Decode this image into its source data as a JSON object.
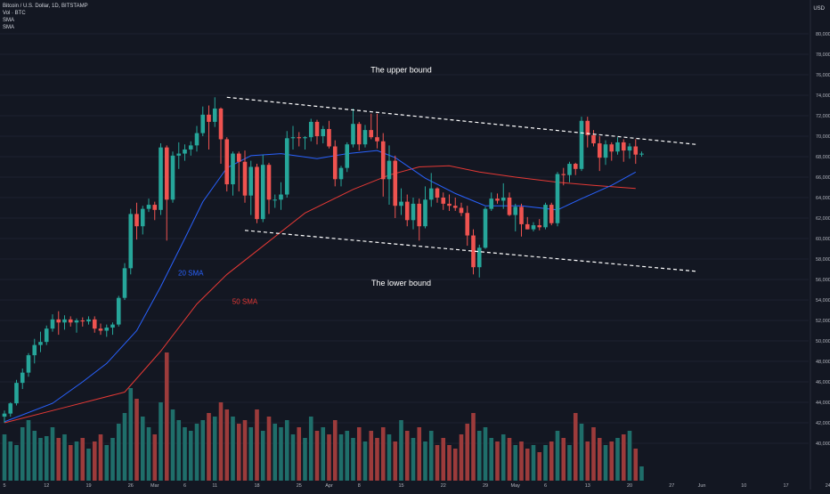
{
  "legend": {
    "symbol": "Bitcoin / U.S. Dollar, 1D, BITSTAMP",
    "volume": "Vol · BTC",
    "sma1": "SMA",
    "sma2": "SMA"
  },
  "currency": "USD",
  "colors": {
    "background": "#131722",
    "up": "#26a69a",
    "down": "#ef5350",
    "vol_up": "#1f6e6a",
    "vol_down": "#9c3b3b",
    "sma20": "#2962ff",
    "sma50": "#e53935",
    "axis_text": "#b2b5be",
    "bound": "#ffffff"
  },
  "chart_data": {
    "type": "candlestick",
    "ylim": [
      38000,
      82000
    ],
    "y_ticks": [
      "40,000",
      "42,000",
      "44,000",
      "46,000",
      "48,000",
      "50,000",
      "52,000",
      "54,000",
      "56,000",
      "58,000",
      "60,000",
      "62,000",
      "64,000",
      "66,000",
      "68,000",
      "70,000",
      "72,000",
      "74,000",
      "76,000",
      "78,000",
      "80,000"
    ],
    "x_ticks": [
      "5",
      "12",
      "19",
      "26",
      "Mar",
      "6",
      "11",
      "18",
      "25",
      "Apr",
      "8",
      "15",
      "22",
      "29",
      "May",
      "6",
      "13",
      "20",
      "27",
      "Jun",
      "10",
      "17",
      "24"
    ],
    "candles": [
      [
        42600,
        43200,
        42000,
        42900
      ],
      [
        42900,
        44000,
        42600,
        43900
      ],
      [
        43900,
        46200,
        43700,
        45900
      ],
      [
        45900,
        47300,
        45300,
        46900
      ],
      [
        46900,
        48800,
        46500,
        48600
      ],
      [
        48600,
        50200,
        47800,
        49600
      ],
      [
        49600,
        50900,
        48900,
        49900
      ],
      [
        49900,
        51500,
        49600,
        51200
      ],
      [
        51200,
        52600,
        50900,
        52100
      ],
      [
        52100,
        52900,
        50600,
        51800
      ],
      [
        51800,
        52500,
        51100,
        52100
      ],
      [
        52100,
        52400,
        51400,
        51800
      ],
      [
        51800,
        52200,
        50800,
        52000
      ],
      [
        52000,
        52300,
        51400,
        51900
      ],
      [
        51900,
        52400,
        51600,
        52100
      ],
      [
        52100,
        52400,
        50800,
        51200
      ],
      [
        51200,
        51700,
        50600,
        51000
      ],
      [
        51000,
        51600,
        50400,
        51300
      ],
      [
        51300,
        51800,
        50600,
        51600
      ],
      [
        51600,
        54400,
        51400,
        54200
      ],
      [
        54200,
        57600,
        54000,
        57100
      ],
      [
        57100,
        62900,
        56500,
        62400
      ],
      [
        62400,
        63500,
        59900,
        61200
      ],
      [
        61200,
        63200,
        60400,
        62900
      ],
      [
        62900,
        63900,
        62600,
        63300
      ],
      [
        63300,
        63600,
        61800,
        62800
      ],
      [
        62800,
        69300,
        62300,
        68900
      ],
      [
        68900,
        69100,
        59800,
        63800
      ],
      [
        63800,
        68500,
        63500,
        68100
      ],
      [
        68100,
        69400,
        66800,
        68300
      ],
      [
        68300,
        69200,
        67600,
        68700
      ],
      [
        68700,
        69500,
        68100,
        69100
      ],
      [
        69100,
        71000,
        68500,
        70300
      ],
      [
        70300,
        72900,
        70000,
        72100
      ],
      [
        72100,
        73000,
        68700,
        71400
      ],
      [
        71400,
        73800,
        70900,
        72700
      ],
      [
        72700,
        72800,
        67300,
        69700
      ],
      [
        69700,
        69900,
        64600,
        65300
      ],
      [
        65300,
        68500,
        64200,
        68300
      ],
      [
        68300,
        68500,
        64600,
        67500
      ],
      [
        67500,
        68600,
        63500,
        64200
      ],
      [
        64200,
        67600,
        62300,
        67000
      ],
      [
        67000,
        67300,
        61500,
        61900
      ],
      [
        61900,
        68200,
        61600,
        67200
      ],
      [
        67200,
        67400,
        62400,
        63800
      ],
      [
        63800,
        64300,
        63000,
        63800
      ],
      [
        63800,
        65500,
        62800,
        64300
      ],
      [
        64300,
        70500,
        64000,
        69800
      ],
      [
        69800,
        71000,
        68700,
        69900
      ],
      [
        69900,
        70400,
        69000,
        69800
      ],
      [
        69800,
        70000,
        68700,
        69900
      ],
      [
        69900,
        71700,
        69500,
        71400
      ],
      [
        71400,
        71600,
        69200,
        70000
      ],
      [
        70000,
        71000,
        69300,
        70700
      ],
      [
        70700,
        71500,
        68800,
        69000
      ],
      [
        69000,
        69600,
        65100,
        65800
      ],
      [
        65800,
        67100,
        65100,
        66900
      ],
      [
        66900,
        69400,
        66500,
        69200
      ],
      [
        69200,
        72700,
        68900,
        71200
      ],
      [
        71200,
        71400,
        68600,
        69200
      ],
      [
        69200,
        71100,
        68900,
        70600
      ],
      [
        70600,
        72200,
        69700,
        69900
      ],
      [
        69900,
        72200,
        68800,
        69500
      ],
      [
        69500,
        70300,
        64100,
        65800
      ],
      [
        65800,
        69100,
        63300,
        67600
      ],
      [
        67600,
        68100,
        62000,
        63200
      ],
      [
        63200,
        64900,
        62300,
        63600
      ],
      [
        63600,
        64300,
        61200,
        61800
      ],
      [
        61800,
        64000,
        60900,
        63400
      ],
      [
        63400,
        63900,
        59800,
        61200
      ],
      [
        61200,
        65100,
        61000,
        63800
      ],
      [
        63800,
        66400,
        63100,
        64900
      ],
      [
        64900,
        65000,
        63500,
        64000
      ],
      [
        64000,
        64500,
        62800,
        63400
      ],
      [
        63400,
        64300,
        62700,
        63200
      ],
      [
        63200,
        64000,
        62700,
        63000
      ],
      [
        63000,
        63500,
        62200,
        62500
      ],
      [
        62500,
        63200,
        59300,
        60300
      ],
      [
        60300,
        60900,
        56500,
        57200
      ],
      [
        57200,
        59400,
        56200,
        59100
      ],
      [
        59100,
        63100,
        59000,
        62900
      ],
      [
        62900,
        64500,
        62700,
        63900
      ],
      [
        63900,
        64400,
        63400,
        63700
      ],
      [
        63700,
        65400,
        62900,
        64000
      ],
      [
        64000,
        64500,
        62200,
        62300
      ],
      [
        62300,
        63400,
        60700,
        63100
      ],
      [
        63100,
        63400,
        60200,
        61400
      ],
      [
        61400,
        62100,
        60900,
        60900
      ],
      [
        60900,
        61600,
        60700,
        61300
      ],
      [
        61300,
        61900,
        60800,
        61100
      ],
      [
        61100,
        63500,
        60900,
        63300
      ],
      [
        63300,
        63500,
        61300,
        61500
      ],
      [
        61500,
        66500,
        61200,
        66300
      ],
      [
        66300,
        66900,
        65200,
        66200
      ],
      [
        66200,
        67500,
        65500,
        67300
      ],
      [
        67300,
        67400,
        66200,
        66800
      ],
      [
        66800,
        71900,
        66600,
        71500
      ],
      [
        71500,
        71900,
        68900,
        70100
      ],
      [
        70100,
        70600,
        69000,
        69300
      ],
      [
        69300,
        70000,
        66600,
        67900
      ],
      [
        67900,
        69600,
        67200,
        69200
      ],
      [
        69200,
        69400,
        67600,
        68500
      ],
      [
        68500,
        69900,
        68200,
        69400
      ],
      [
        69400,
        69700,
        67500,
        68600
      ],
      [
        68600,
        69300,
        67800,
        69000
      ],
      [
        69000,
        69700,
        67300,
        68200
      ],
      [
        68200,
        68500,
        68000,
        68300
      ]
    ],
    "volume": [
      26,
      22,
      20,
      30,
      34,
      28,
      24,
      25,
      30,
      24,
      26,
      20,
      22,
      24,
      18,
      22,
      26,
      20,
      24,
      32,
      38,
      52,
      46,
      36,
      30,
      26,
      44,
      72,
      40,
      34,
      30,
      28,
      32,
      34,
      38,
      36,
      44,
      40,
      36,
      32,
      34,
      30,
      40,
      28,
      36,
      32,
      30,
      34,
      26,
      30,
      24,
      36,
      28,
      30,
      26,
      34,
      26,
      28,
      24,
      30,
      22,
      28,
      24,
      30,
      26,
      22,
      34,
      28,
      24,
      30,
      22,
      28,
      20,
      24,
      20,
      18,
      26,
      32,
      38,
      28,
      30,
      24,
      22,
      26,
      24,
      20,
      22,
      18,
      20,
      16,
      20,
      22,
      28,
      24,
      20,
      38,
      32,
      22,
      30,
      24,
      20,
      22,
      24,
      26,
      28,
      18,
      8
    ],
    "sma20": [
      [
        0,
        42100
      ],
      [
        8,
        43900
      ],
      [
        13,
        46000
      ],
      [
        17,
        47800
      ],
      [
        22,
        51000
      ],
      [
        26,
        55300
      ],
      [
        30,
        60000
      ],
      [
        33,
        63600
      ],
      [
        37,
        66900
      ],
      [
        41,
        68100
      ],
      [
        46,
        68300
      ],
      [
        52,
        67800
      ],
      [
        57,
        68300
      ],
      [
        62,
        68600
      ],
      [
        65,
        67900
      ],
      [
        70,
        65900
      ],
      [
        75,
        64400
      ],
      [
        80,
        63200
      ],
      [
        86,
        63200
      ],
      [
        92,
        62800
      ],
      [
        96,
        63900
      ],
      [
        101,
        65200
      ],
      [
        105,
        66500
      ]
    ],
    "sma50": [
      [
        0,
        42000
      ],
      [
        10,
        43500
      ],
      [
        20,
        45000
      ],
      [
        26,
        49000
      ],
      [
        32,
        53600
      ],
      [
        37,
        56500
      ],
      [
        42,
        58800
      ],
      [
        50,
        62500
      ],
      [
        58,
        64800
      ],
      [
        64,
        66200
      ],
      [
        69,
        67000
      ],
      [
        74,
        67100
      ],
      [
        79,
        66500
      ],
      [
        85,
        66000
      ],
      [
        92,
        65500
      ],
      [
        98,
        65200
      ],
      [
        105,
        64900
      ]
    ],
    "bounds": [
      {
        "label": "The upper bound",
        "from": [
          37,
          73800
        ],
        "to": [
          115,
          69200
        ]
      },
      {
        "label": "The lower bound",
        "from": [
          40,
          60800
        ],
        "to": [
          115,
          56800
        ]
      }
    ],
    "annotations": [
      {
        "text": "20 SMA",
        "kind": "sma20",
        "at": [
          31,
          56400
        ]
      },
      {
        "text": "50 SMA",
        "kind": "sma50",
        "at": [
          40,
          53600
        ]
      },
      {
        "text": "The upper bound",
        "kind": "title",
        "at": [
          66,
          76200
        ]
      },
      {
        "text": "The lower bound",
        "kind": "title",
        "at": [
          66,
          55400
        ]
      }
    ]
  }
}
